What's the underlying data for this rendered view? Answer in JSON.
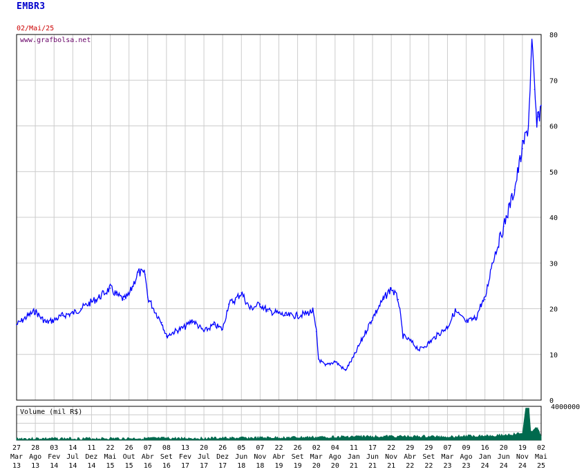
{
  "header": {
    "ticker": "EMBR3",
    "date": "02/Mai/25"
  },
  "watermark": "www.grafbolsa.net",
  "volume_label": "Volume (mil R$)",
  "colors": {
    "price_line": "#0000ff",
    "volume_fill": "#006a4e",
    "grid": "#cccccc",
    "ticker": "#0000cc",
    "date": "#cc0000",
    "watermark": "#660066"
  },
  "chart_data": [
    {
      "type": "line",
      "title": "EMBR3",
      "subtitle": "02/Mai/25",
      "ylim": [
        0,
        80
      ],
      "y_ticks": [
        "0",
        "10",
        "20",
        "30",
        "40",
        "50",
        "60",
        "70",
        "80"
      ],
      "y_axis_side": "right",
      "grid": true,
      "x_ticks": [
        {
          "day": "27",
          "mon": "Mar",
          "yr": "13"
        },
        {
          "day": "28",
          "mon": "Ago",
          "yr": "13"
        },
        {
          "day": "03",
          "mon": "Fev",
          "yr": "14"
        },
        {
          "day": "14",
          "mon": "Jul",
          "yr": "14"
        },
        {
          "day": "11",
          "mon": "Dez",
          "yr": "14"
        },
        {
          "day": "22",
          "mon": "Mai",
          "yr": "15"
        },
        {
          "day": "26",
          "mon": "Out",
          "yr": "15"
        },
        {
          "day": "07",
          "mon": "Abr",
          "yr": "16"
        },
        {
          "day": "08",
          "mon": "Set",
          "yr": "16"
        },
        {
          "day": "13",
          "mon": "Fev",
          "yr": "17"
        },
        {
          "day": "20",
          "mon": "Jul",
          "yr": "17"
        },
        {
          "day": "26",
          "mon": "Dez",
          "yr": "17"
        },
        {
          "day": "05",
          "mon": "Jun",
          "yr": "18"
        },
        {
          "day": "07",
          "mon": "Nov",
          "yr": "18"
        },
        {
          "day": "22",
          "mon": "Abr",
          "yr": "19"
        },
        {
          "day": "26",
          "mon": "Set",
          "yr": "19"
        },
        {
          "day": "02",
          "mon": "Mar",
          "yr": "20"
        },
        {
          "day": "04",
          "mon": "Ago",
          "yr": "20"
        },
        {
          "day": "11",
          "mon": "Jan",
          "yr": "21"
        },
        {
          "day": "17",
          "mon": "Jun",
          "yr": "21"
        },
        {
          "day": "22",
          "mon": "Nov",
          "yr": "21"
        },
        {
          "day": "29",
          "mon": "Abr",
          "yr": "22"
        },
        {
          "day": "29",
          "mon": "Set",
          "yr": "22"
        },
        {
          "day": "07",
          "mon": "Mar",
          "yr": "23"
        },
        {
          "day": "09",
          "mon": "Ago",
          "yr": "23"
        },
        {
          "day": "16",
          "mon": "Jan",
          "yr": "24"
        },
        {
          "day": "20",
          "mon": "Jun",
          "yr": "24"
        },
        {
          "day": "19",
          "mon": "Nov",
          "yr": "24"
        },
        {
          "day": "02",
          "mon": "Mai",
          "yr": "25"
        }
      ],
      "series": [
        {
          "name": "EMBR3",
          "points": [
            [
              "2013-03-27",
              16.5
            ],
            [
              "2013-05-15",
              17.5
            ],
            [
              "2013-07-01",
              18.5
            ],
            [
              "2013-08-28",
              19.5
            ],
            [
              "2013-10-15",
              18.0
            ],
            [
              "2013-12-01",
              17.0
            ],
            [
              "2014-02-03",
              17.5
            ],
            [
              "2014-04-15",
              18.5
            ],
            [
              "2014-07-14",
              19.0
            ],
            [
              "2014-09-15",
              20.0
            ],
            [
              "2014-12-11",
              21.5
            ],
            [
              "2015-02-15",
              22.5
            ],
            [
              "2015-05-22",
              24.5
            ],
            [
              "2015-07-15",
              23.0
            ],
            [
              "2015-09-15",
              22.0
            ],
            [
              "2015-10-26",
              23.0
            ],
            [
              "2016-01-15",
              28.0
            ],
            [
              "2016-03-15",
              27.5
            ],
            [
              "2016-04-07",
              22.5
            ],
            [
              "2016-06-15",
              19.0
            ],
            [
              "2016-08-01",
              17.0
            ],
            [
              "2016-09-08",
              14.0
            ],
            [
              "2016-11-15",
              15.0
            ],
            [
              "2017-02-13",
              16.0
            ],
            [
              "2017-04-15",
              17.5
            ],
            [
              "2017-07-20",
              15.0
            ],
            [
              "2017-10-15",
              16.5
            ],
            [
              "2017-12-26",
              15.5
            ],
            [
              "2018-02-15",
              21.0
            ],
            [
              "2018-04-15",
              22.0
            ],
            [
              "2018-06-05",
              23.5
            ],
            [
              "2018-08-15",
              20.0
            ],
            [
              "2018-11-07",
              21.0
            ],
            [
              "2019-01-15",
              19.5
            ],
            [
              "2019-04-22",
              19.0
            ],
            [
              "2019-06-15",
              18.5
            ],
            [
              "2019-09-26",
              18.5
            ],
            [
              "2019-12-15",
              19.0
            ],
            [
              "2020-02-01",
              19.5
            ],
            [
              "2020-03-02",
              15.0
            ],
            [
              "2020-03-20",
              9.0
            ],
            [
              "2020-05-15",
              7.5
            ],
            [
              "2020-08-04",
              8.5
            ],
            [
              "2020-10-30",
              6.5
            ],
            [
              "2021-01-11",
              9.5
            ],
            [
              "2021-03-15",
              13.0
            ],
            [
              "2021-06-17",
              18.0
            ],
            [
              "2021-09-15",
              22.0
            ],
            [
              "2021-11-22",
              24.5
            ],
            [
              "2022-01-20",
              22.0
            ],
            [
              "2022-03-01",
              14.0
            ],
            [
              "2022-04-29",
              13.0
            ],
            [
              "2022-07-15",
              11.0
            ],
            [
              "2022-09-29",
              12.5
            ],
            [
              "2022-12-01",
              14.0
            ],
            [
              "2023-03-07",
              16.0
            ],
            [
              "2023-05-10",
              19.5
            ],
            [
              "2023-08-09",
              17.0
            ],
            [
              "2023-11-01",
              18.0
            ],
            [
              "2023-12-15",
              21.0
            ],
            [
              "2024-01-16",
              22.0
            ],
            [
              "2024-03-15",
              30.0
            ],
            [
              "2024-06-20",
              38.0
            ],
            [
              "2024-09-15",
              46.0
            ],
            [
              "2024-11-19",
              55.0
            ],
            [
              "2025-01-10",
              60.0
            ],
            [
              "2025-02-10",
              78.0
            ],
            [
              "2025-03-05",
              68.0
            ],
            [
              "2025-03-25",
              60.0
            ],
            [
              "2025-04-10",
              62.0
            ],
            [
              "2025-05-02",
              64.5
            ]
          ]
        }
      ]
    },
    {
      "type": "area",
      "title": "Volume (mil R$)",
      "ylim": [
        0,
        4000000
      ],
      "y_ticks": [
        "4000000"
      ],
      "series": [
        {
          "name": "Volume (mil R$)",
          "points": [
            [
              "2013-03-27",
              180000
            ],
            [
              "2016-01-15",
              200000
            ],
            [
              "2018-06-05",
              250000
            ],
            [
              "2020-03-15",
              350000
            ],
            [
              "2021-06-17",
              450000
            ],
            [
              "2023-03-07",
              420000
            ],
            [
              "2024-06-20",
              600000
            ],
            [
              "2024-11-19",
              800000
            ],
            [
              "2025-01-15",
              3800000
            ],
            [
              "2025-02-15",
              1100000
            ],
            [
              "2025-04-01",
              1500000
            ],
            [
              "2025-05-02",
              500000
            ]
          ]
        }
      ]
    }
  ]
}
